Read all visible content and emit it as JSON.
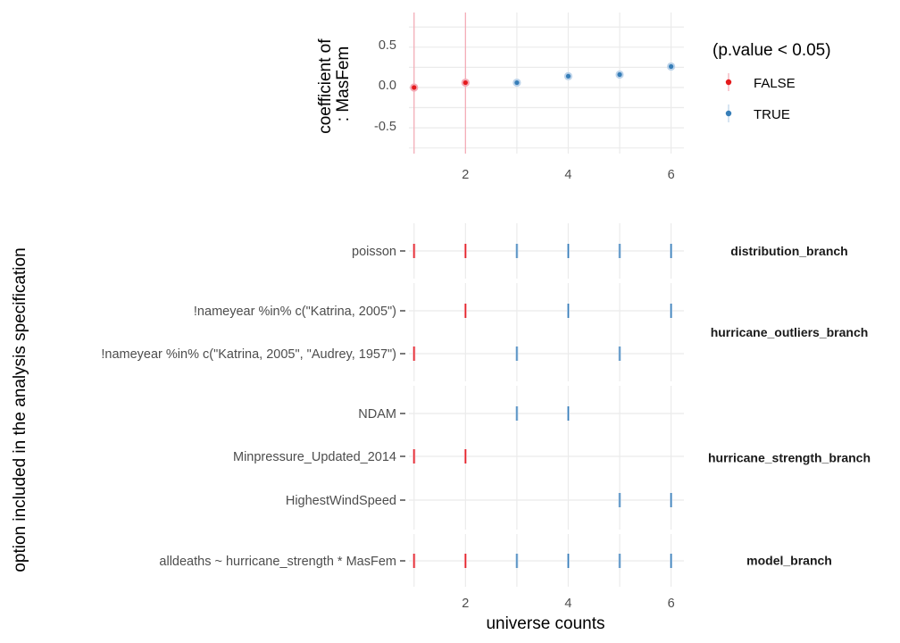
{
  "chart_data": [
    {
      "type": "scatter",
      "ylabel": [
        "coefficient of",
        ": MasFem"
      ],
      "x_ticks": [
        2,
        4,
        6
      ],
      "y_ticks": [
        "0.5",
        "0.0",
        "-0.5"
      ],
      "xlim": [
        0.9,
        6.25
      ],
      "ylim": [
        -0.82,
        0.93
      ],
      "points": [
        {
          "x": 1,
          "y": 0.0,
          "ci": [
            -0.82,
            0.93
          ],
          "significant": false
        },
        {
          "x": 2,
          "y": 0.06,
          "ci": [
            -0.82,
            0.93
          ],
          "significant": false
        },
        {
          "x": 3,
          "y": 0.06,
          "ci": [
            0.04,
            0.08
          ],
          "significant": true
        },
        {
          "x": 4,
          "y": 0.14,
          "ci": [
            0.12,
            0.16
          ],
          "significant": true
        },
        {
          "x": 5,
          "y": 0.16,
          "ci": [
            0.14,
            0.18
          ],
          "significant": true
        },
        {
          "x": 6,
          "y": 0.26,
          "ci": [
            0.24,
            0.28
          ],
          "significant": true
        }
      ]
    },
    {
      "type": "scatter",
      "xlabel": "universe counts",
      "ylabel": "option included in the analysis specification",
      "x_ticks": [
        2,
        4,
        6
      ],
      "xlim": [
        0.9,
        6.25
      ],
      "panels": [
        {
          "label": "distribution_branch",
          "rows": [
            {
              "option": "poisson",
              "universes": [
                1,
                2,
                3,
                4,
                5,
                6
              ]
            }
          ]
        },
        {
          "label": "hurricane_outliers_branch",
          "rows": [
            {
              "option": "!nameyear %in% c(\"Katrina, 2005\")",
              "universes": [
                2,
                4,
                6
              ]
            },
            {
              "option": "!nameyear %in% c(\"Katrina, 2005\", \"Audrey, 1957\")",
              "universes": [
                1,
                3,
                5
              ]
            }
          ]
        },
        {
          "label": "hurricane_strength_branch",
          "rows": [
            {
              "option": "NDAM",
              "universes": [
                3,
                4
              ]
            },
            {
              "option": "Minpressure_Updated_2014",
              "universes": [
                1,
                2
              ]
            },
            {
              "option": "HighestWindSpeed",
              "universes": [
                5,
                6
              ]
            }
          ]
        },
        {
          "label": "model_branch",
          "rows": [
            {
              "option": "alldeaths ~ hurricane_strength * MasFem",
              "universes": [
                1,
                2,
                3,
                4,
                5,
                6
              ]
            }
          ]
        }
      ]
    }
  ],
  "legend": {
    "title": "(p.value < 0.05)",
    "entries": [
      {
        "label": "FALSE",
        "significant": false
      },
      {
        "label": "TRUE",
        "significant": true
      }
    ]
  },
  "colors": {
    "false": "#e41a1c",
    "true": "#377eb8",
    "false_light": "#f4a9b4",
    "true_light": "#bcd3ea"
  }
}
